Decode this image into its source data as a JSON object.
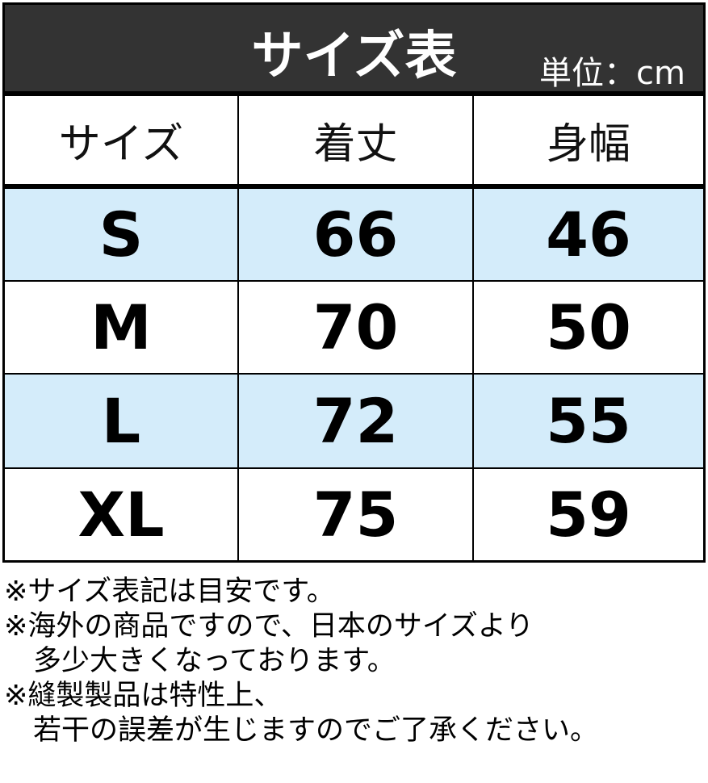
{
  "header": {
    "title": "サイズ表",
    "unit": "単位：cm"
  },
  "columns": [
    "サイズ",
    "着丈",
    "身幅"
  ],
  "rows": [
    [
      "S",
      "66",
      "46"
    ],
    [
      "M",
      "70",
      "50"
    ],
    [
      "L",
      "72",
      "55"
    ],
    [
      "XL",
      "75",
      "59"
    ]
  ],
  "notes": [
    "※サイズ表記は目安です。",
    "※海外の商品ですので、日本のサイズより",
    "多少大きくなっております。",
    "※縫製製品は特性上、",
    "若干の誤差が生じますのでご了承ください。"
  ],
  "colors": {
    "header_bg": "#333333",
    "stripe": "#d4ecfa"
  }
}
